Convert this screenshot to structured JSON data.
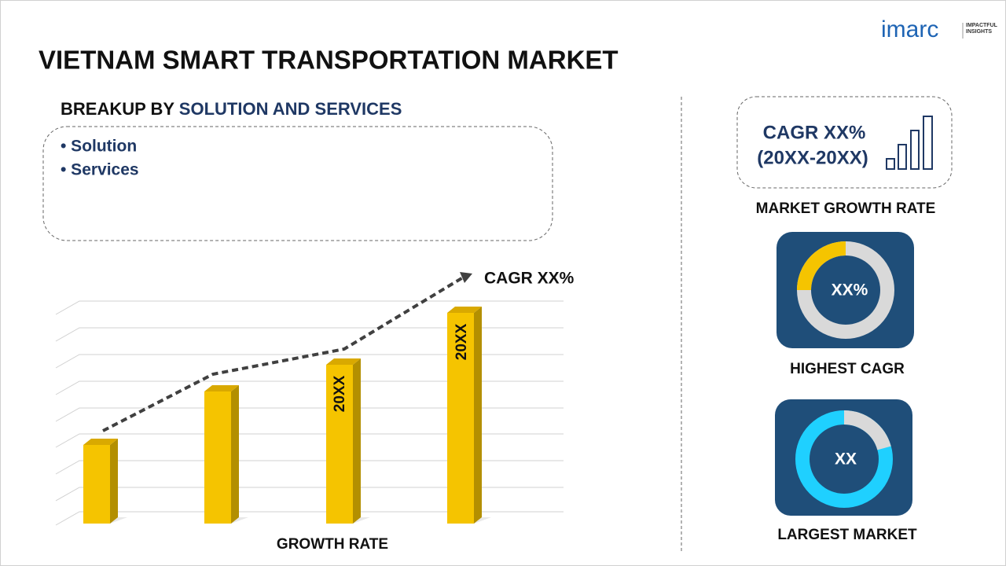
{
  "logo": {
    "brand": "imarc",
    "tagline": "IMPACTFUL INSIGHTS"
  },
  "header": {
    "title": "VIETNAM SMART TRANSPORTATION MARKET"
  },
  "breakup": {
    "prefix": "BREAKUP BY",
    "topic": "SOLUTION AND SERVICES",
    "items": [
      "• Solution",
      "• Services"
    ]
  },
  "growth_chart": {
    "cagr_label": "CAGR XX%",
    "bar_labels": [
      "20XX",
      "20XX"
    ],
    "axis_label": "GROWTH RATE"
  },
  "market_growth": {
    "cagr": "CAGR XX%",
    "period": "(20XX-20XX)",
    "caption": "MARKET GROWTH RATE"
  },
  "highest_cagr": {
    "value": "XX%",
    "caption": "HIGHEST CAGR"
  },
  "largest_market": {
    "value": "XX",
    "caption": "LARGEST MARKET"
  }
}
